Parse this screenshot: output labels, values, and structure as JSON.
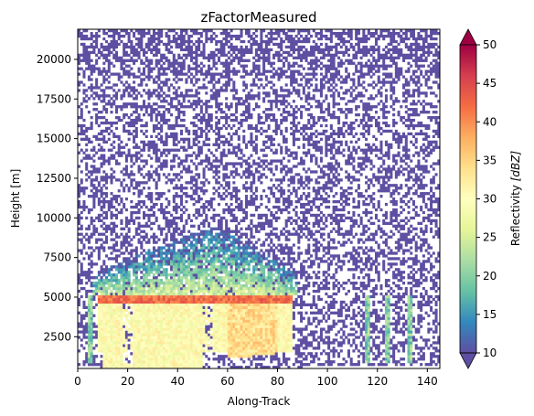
{
  "chart_data": {
    "type": "heatmap",
    "title": "zFactorMeasured",
    "xlabel": "Along-Track",
    "ylabel": "Height [m]",
    "xlim": [
      0,
      145
    ],
    "ylim": [
      500,
      21900
    ],
    "x_ticks": [
      0,
      20,
      40,
      60,
      80,
      100,
      120,
      140
    ],
    "y_ticks": [
      2500,
      5000,
      7500,
      10000,
      12500,
      15000,
      17500,
      20000
    ],
    "colorbar": {
      "label": "Reflectivity [dBZ]",
      "label_plain": "Reflectivity ",
      "label_unit": "[dBZ]",
      "colormap": "Spectral_r",
      "vmin": 10,
      "vmax": 50,
      "ticks": [
        10,
        15,
        20,
        25,
        30,
        35,
        40,
        45,
        50
      ],
      "extend": "both",
      "under_color": "#5e4fa2",
      "over_color": "#9e0142"
    },
    "features": {
      "noise_floor_dbz": 10,
      "bright_band_height_m": 4800,
      "bright_band_x_range": [
        8,
        86
      ],
      "bright_band_dbz": 42,
      "stratiform_rain_dbz": 30,
      "cloud_top_max_m": 9500,
      "cloud_top_peak_x": 55,
      "convective_columns_x": [
        5,
        116,
        124,
        133
      ]
    }
  }
}
